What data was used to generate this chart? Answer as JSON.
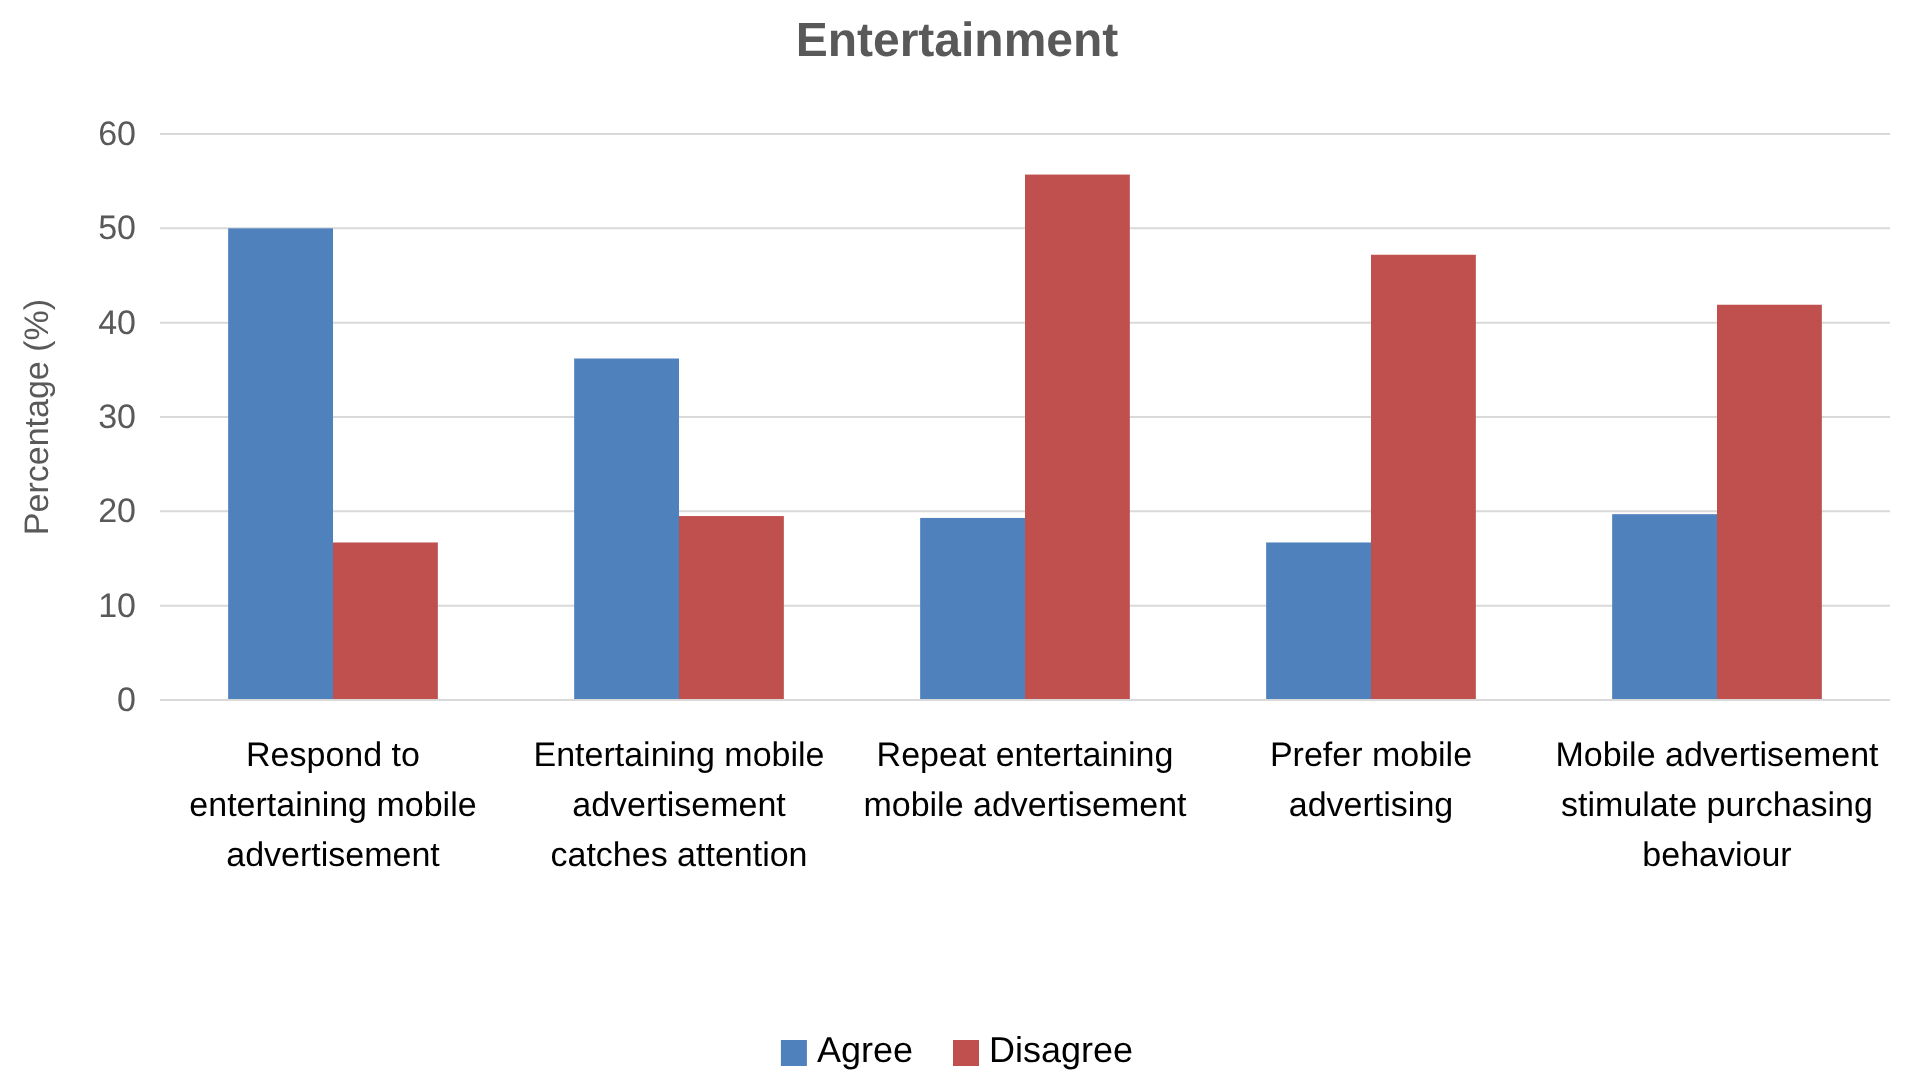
{
  "chart_data": {
    "type": "bar",
    "title": "Entertainment",
    "ylabel": "Percentage (%)",
    "categories": [
      "Respond to entertaining mobile advertisement",
      "Entertaining mobile advertisement catches attention",
      "Repeat entertaining mobile advertisement",
      "Prefer mobile advertising",
      "Mobile advertisement stimulate purchasing behaviour"
    ],
    "series": [
      {
        "name": "Agree",
        "color": "#4f81bd",
        "values": [
          50,
          36.2,
          19.3,
          16.7,
          19.7
        ]
      },
      {
        "name": "Disagree",
        "color": "#c0504d",
        "values": [
          16.7,
          19.5,
          55.7,
          47.2,
          41.9
        ]
      }
    ],
    "ylim": [
      0,
      60
    ],
    "yticks": [
      0,
      10,
      20,
      30,
      40,
      50,
      60
    ],
    "grid": "y",
    "legend": "bottom"
  }
}
